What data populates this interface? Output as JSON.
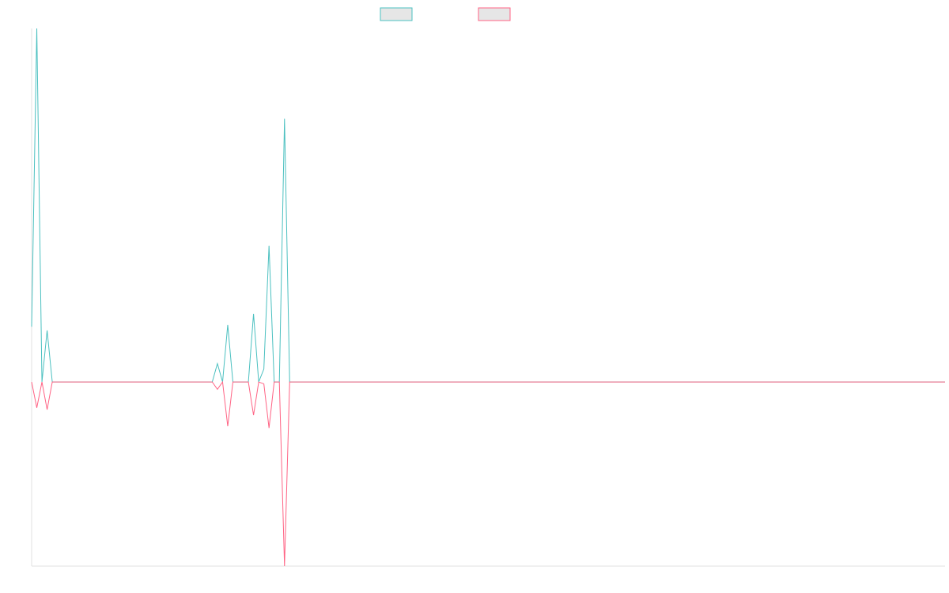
{
  "chart_data": {
    "type": "line",
    "title": "",
    "xlabel": "",
    "ylabel": "",
    "grid": false,
    "legend_position": "top-center",
    "x": [
      0,
      1,
      2,
      3,
      4,
      5,
      6,
      7,
      8,
      9,
      10,
      11,
      12,
      13,
      14,
      15,
      16,
      17,
      18,
      19,
      20,
      21,
      22,
      23,
      24,
      25,
      26,
      27,
      28,
      29,
      30,
      31,
      32,
      33,
      34,
      35,
      36,
      37,
      38,
      39,
      40,
      41,
      42,
      43,
      44,
      45,
      46,
      47,
      48,
      49,
      50,
      51,
      52,
      53,
      54,
      55,
      56,
      57,
      58,
      59,
      60,
      61,
      62,
      63,
      64,
      65,
      66,
      67,
      68,
      69,
      70,
      71,
      72,
      73,
      74,
      75,
      76,
      77,
      78,
      79,
      80,
      81,
      82,
      83,
      84,
      85,
      86,
      87,
      88,
      89,
      90,
      91,
      92,
      93,
      94,
      95,
      96,
      97,
      98,
      99,
      100,
      101,
      102,
      103,
      104,
      105,
      106,
      107,
      108,
      109,
      110,
      111,
      112,
      113,
      114,
      115,
      116,
      117,
      118,
      119,
      120,
      121,
      122,
      123,
      124,
      125,
      126,
      127,
      128,
      129,
      130,
      131,
      132,
      133,
      134,
      135,
      136,
      137,
      138,
      139,
      140,
      141,
      142,
      143,
      144,
      145,
      146,
      147,
      148,
      149,
      150,
      151,
      152,
      153,
      154,
      155,
      156,
      157,
      158,
      159,
      160,
      161,
      162,
      163,
      164,
      165,
      166,
      167,
      168,
      169,
      170,
      171,
      172,
      173,
      174,
      175,
      176,
      177
    ],
    "xlim": [
      0,
      177
    ],
    "ylim": [
      -1.0,
      1.92
    ],
    "series": [
      {
        "name": "",
        "color": "#4bc0c0",
        "values": [
          0.3,
          1.92,
          0,
          0.28,
          0,
          0,
          0,
          0,
          0,
          0,
          0,
          0,
          0,
          0,
          0,
          0,
          0,
          0,
          0,
          0,
          0,
          0,
          0,
          0,
          0,
          0,
          0,
          0,
          0,
          0,
          0,
          0,
          0,
          0,
          0,
          0,
          0.1,
          0,
          0.31,
          0,
          0,
          0,
          0,
          0.37,
          0,
          0.07,
          0.74,
          0,
          0,
          1.43,
          0,
          0,
          0,
          0,
          0,
          0,
          0,
          0,
          0,
          0,
          0,
          0,
          0,
          0,
          0,
          0,
          0,
          0,
          0,
          0,
          0,
          0,
          0,
          0,
          0,
          0,
          0,
          0,
          0,
          0,
          0,
          0,
          0,
          0,
          0,
          0,
          0,
          0,
          0,
          0,
          0,
          0,
          0,
          0,
          0,
          0,
          0,
          0,
          0,
          0,
          0,
          0,
          0,
          0,
          0,
          0,
          0,
          0,
          0,
          0,
          0,
          0,
          0,
          0,
          0,
          0,
          0,
          0,
          0,
          0,
          0,
          0,
          0,
          0,
          0,
          0,
          0,
          0,
          0,
          0,
          0,
          0,
          0,
          0,
          0,
          0,
          0,
          0,
          0,
          0,
          0,
          0,
          0,
          0,
          0,
          0,
          0,
          0,
          0,
          0,
          0,
          0,
          0,
          0,
          0,
          0,
          0,
          0,
          0,
          0,
          0,
          0,
          0,
          0,
          0,
          0,
          0,
          0,
          0,
          0,
          0,
          0,
          0,
          0,
          0,
          0,
          0,
          0
        ]
      },
      {
        "name": "",
        "color": "#ff6384",
        "values": [
          0,
          -0.14,
          0,
          -0.15,
          0,
          0,
          0,
          0,
          0,
          0,
          0,
          0,
          0,
          0,
          0,
          0,
          0,
          0,
          0,
          0,
          0,
          0,
          0,
          0,
          0,
          0,
          0,
          0,
          0,
          0,
          0,
          0,
          0,
          0,
          0,
          0,
          -0.04,
          0,
          -0.24,
          0,
          0,
          0,
          0,
          -0.18,
          0,
          -0.01,
          -0.25,
          0,
          0,
          -1.0,
          0,
          0,
          0,
          0,
          0,
          0,
          0,
          0,
          0,
          0,
          0,
          0,
          0,
          0,
          0,
          0,
          0,
          0,
          0,
          0,
          0,
          0,
          0,
          0,
          0,
          0,
          0,
          0,
          0,
          0,
          0,
          0,
          0,
          0,
          0,
          0,
          0,
          0,
          0,
          0,
          0,
          0,
          0,
          0,
          0,
          0,
          0,
          0,
          0,
          0,
          0,
          0,
          0,
          0,
          0,
          0,
          0,
          0,
          0,
          0,
          0,
          0,
          0,
          0,
          0,
          0,
          0,
          0,
          0,
          0,
          0,
          0,
          0,
          0,
          0,
          0,
          0,
          0,
          0,
          0,
          0,
          0,
          0,
          0,
          0,
          0,
          0,
          0,
          0,
          0,
          0,
          0,
          0,
          0,
          0,
          0,
          0,
          0,
          0,
          0,
          0,
          0,
          0,
          0,
          0,
          0,
          0,
          0,
          0,
          0,
          0,
          0,
          0,
          0,
          0,
          0,
          0,
          0,
          0,
          0,
          0,
          0,
          0,
          0,
          0,
          0,
          0,
          0
        ]
      }
    ]
  }
}
